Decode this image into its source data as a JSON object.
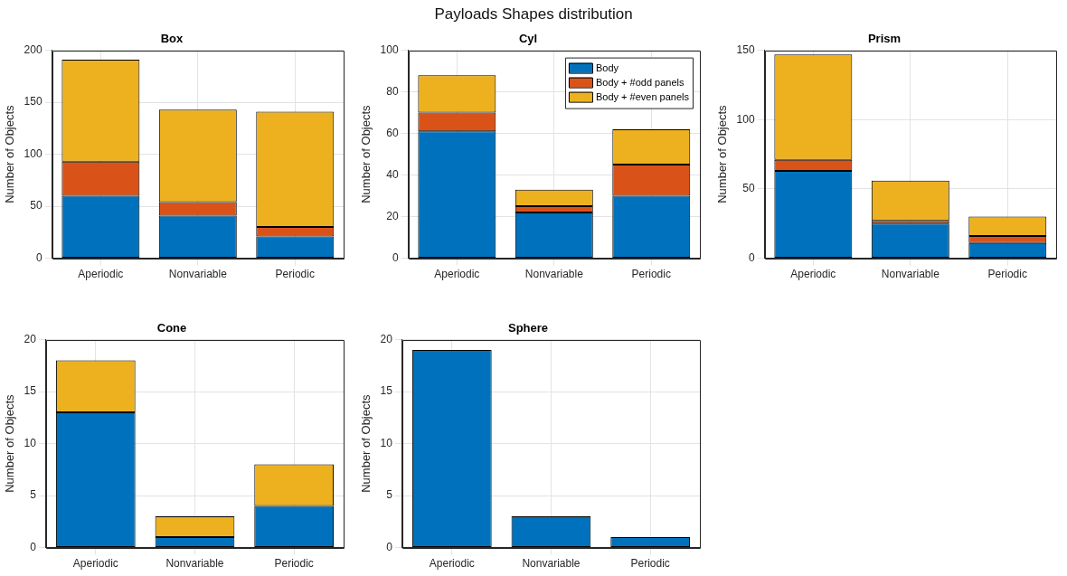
{
  "chart_data": [
    {
      "type": "bar",
      "title": "Box",
      "annotations": [
        "Payloads Shapes distribution"
      ],
      "ylabel": "Number of Objects",
      "categories": [
        "Aperiodic",
        "Nonvariable",
        "Periodic"
      ],
      "stacked": true,
      "grid": true,
      "legend": false,
      "ylim": [
        0,
        200
      ],
      "yticks": [
        0,
        50,
        100,
        150,
        200
      ],
      "series": [
        {
          "color": "#0072bd",
          "values": [
            60,
            41,
            21
          ]
        },
        {
          "color": "#d95319",
          "values": [
            33,
            13,
            9
          ]
        },
        {
          "color": "#edb120",
          "values": [
            98,
            89,
            111
          ]
        }
      ]
    },
    {
      "type": "bar",
      "title": "Cyl",
      "ylabel": "Number of Objects",
      "categories": [
        "Aperiodic",
        "Nonvariable",
        "Periodic"
      ],
      "stacked": true,
      "grid": true,
      "legend": "top right",
      "ylim": [
        0,
        100
      ],
      "yticks": [
        0,
        20,
        40,
        60,
        80,
        100
      ],
      "series": [
        {
          "name": "Body",
          "color": "#0072bd",
          "values": [
            61,
            22,
            30
          ]
        },
        {
          "name": "Body + #odd panels",
          "color": "#d95319",
          "values": [
            9,
            3,
            15
          ]
        },
        {
          "name": "Body + #even panels",
          "color": "#edb120",
          "values": [
            18,
            8,
            17
          ]
        }
      ]
    },
    {
      "type": "bar",
      "title": "Prism",
      "ylabel": "Number of Objects",
      "categories": [
        "Aperiodic",
        "Nonvariable",
        "Periodic"
      ],
      "stacked": true,
      "grid": true,
      "legend": false,
      "ylim": [
        0,
        150
      ],
      "yticks": [
        0,
        50,
        100,
        150
      ],
      "series": [
        {
          "color": "#0072bd",
          "values": [
            63,
            25,
            11
          ]
        },
        {
          "color": "#d95319",
          "values": [
            8,
            2,
            5
          ]
        },
        {
          "color": "#edb120",
          "values": [
            76,
            29,
            14
          ]
        }
      ]
    },
    {
      "type": "bar",
      "title": "Cone",
      "ylabel": "Number of Objects",
      "categories": [
        "Aperiodic",
        "Nonvariable",
        "Periodic"
      ],
      "stacked": true,
      "grid": true,
      "legend": false,
      "ylim": [
        0,
        20
      ],
      "yticks": [
        0,
        5,
        10,
        15,
        20
      ],
      "series": [
        {
          "color": "#0072bd",
          "values": [
            13,
            1,
            4
          ]
        },
        {
          "color": "#d95319",
          "values": [
            0,
            0,
            0
          ]
        },
        {
          "color": "#edb120",
          "values": [
            5,
            2,
            4
          ]
        }
      ]
    },
    {
      "type": "bar",
      "title": "Sphere",
      "ylabel": "Number of Objects",
      "categories": [
        "Aperiodic",
        "Nonvariable",
        "Periodic"
      ],
      "stacked": true,
      "grid": true,
      "legend": false,
      "ylim": [
        0,
        20
      ],
      "yticks": [
        0,
        5,
        10,
        15,
        20
      ],
      "series": [
        {
          "color": "#0072bd",
          "values": [
            19,
            3,
            1
          ]
        },
        {
          "color": "#d95319",
          "values": [
            0,
            0,
            0
          ]
        },
        {
          "color": "#edb120",
          "values": [
            0,
            0,
            0
          ]
        }
      ]
    }
  ]
}
